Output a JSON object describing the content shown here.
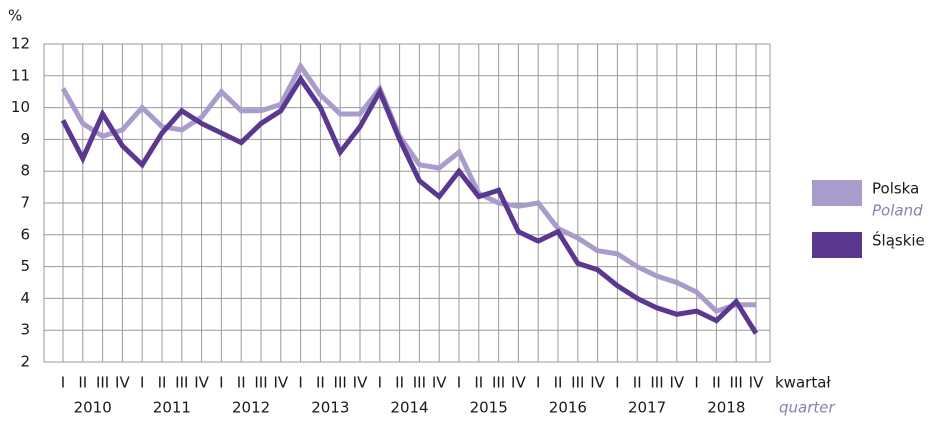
{
  "chart_data": {
    "type": "line",
    "y_unit": "%",
    "x_label": "kwartał",
    "x_label_en": "quarter",
    "categories": [
      "I",
      "II",
      "III",
      "IV",
      "I",
      "II",
      "III",
      "IV",
      "I",
      "II",
      "III",
      "IV",
      "I",
      "II",
      "III",
      "IV",
      "I",
      "II",
      "III",
      "IV",
      "I",
      "II",
      "III",
      "IV",
      "I",
      "II",
      "III",
      "IV",
      "I",
      "II",
      "III",
      "IV",
      "I",
      "II",
      "III",
      "IV"
    ],
    "years": [
      "2010",
      "2011",
      "2012",
      "2013",
      "2014",
      "2015",
      "2016",
      "2017",
      "2018"
    ],
    "series": [
      {
        "name": "Polska",
        "name_en": "Poland",
        "color": "#a99bcb",
        "values": [
          10.6,
          9.5,
          9.1,
          9.3,
          10.0,
          9.4,
          9.3,
          9.7,
          10.5,
          9.9,
          9.9,
          10.1,
          11.3,
          10.4,
          9.8,
          9.8,
          10.6,
          9.1,
          8.2,
          8.1,
          8.6,
          7.3,
          7.0,
          6.9,
          7.0,
          6.2,
          5.9,
          5.5,
          5.4,
          5.0,
          4.7,
          4.5,
          4.2,
          3.6,
          3.8,
          3.8
        ]
      },
      {
        "name": "Śląskie",
        "color": "#5a3890",
        "values": [
          9.6,
          8.4,
          9.8,
          8.8,
          8.2,
          9.2,
          9.9,
          9.5,
          9.2,
          8.9,
          9.5,
          9.9,
          10.9,
          10.0,
          8.6,
          9.4,
          10.5,
          9.0,
          7.7,
          7.2,
          8.0,
          7.2,
          7.4,
          6.1,
          5.8,
          6.1,
          5.1,
          4.9,
          4.4,
          4.0,
          3.7,
          3.5,
          3.6,
          3.3,
          3.9,
          2.9
        ]
      }
    ],
    "ylim": [
      2,
      12
    ],
    "yticks": [
      2,
      3,
      4,
      5,
      6,
      7,
      8,
      9,
      10,
      11,
      12
    ],
    "grid": true
  }
}
